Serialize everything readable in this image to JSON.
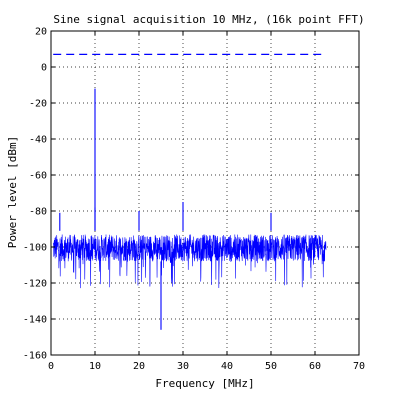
{
  "chart_data": {
    "type": "line",
    "title": "Sine signal acquisition 10 MHz, (16k point FFT)",
    "xlabel": "Frequency [MHz]",
    "ylabel": "Power level [dBm]",
    "xlim": [
      0,
      70
    ],
    "ylim": [
      -160,
      20
    ],
    "x_ticks": [
      0,
      10,
      20,
      30,
      40,
      50,
      60,
      70
    ],
    "y_ticks": [
      20,
      0,
      -20,
      -40,
      -60,
      -80,
      -100,
      -120,
      -140,
      -160
    ],
    "grid": true,
    "series": [
      {
        "style": "solid",
        "color": "#0000ff",
        "noise_floor": {
          "x_range": [
            0.5,
            62.5
          ],
          "typical_range": [
            -108,
            -93
          ],
          "dip_min": -123
        },
        "peaks": [
          {
            "x": 2,
            "y": -81
          },
          {
            "x": 10,
            "y": -12
          },
          {
            "x": 10,
            "y": -78
          },
          {
            "x": 20,
            "y": -80
          },
          {
            "x": 25,
            "y": -146
          },
          {
            "x": 30,
            "y": -75
          },
          {
            "x": 50,
            "y": -81
          }
        ]
      },
      {
        "style": "dashed",
        "color": "#0000ff",
        "x": [
          0.5,
          62.5
        ],
        "y": [
          7,
          7
        ]
      }
    ]
  }
}
